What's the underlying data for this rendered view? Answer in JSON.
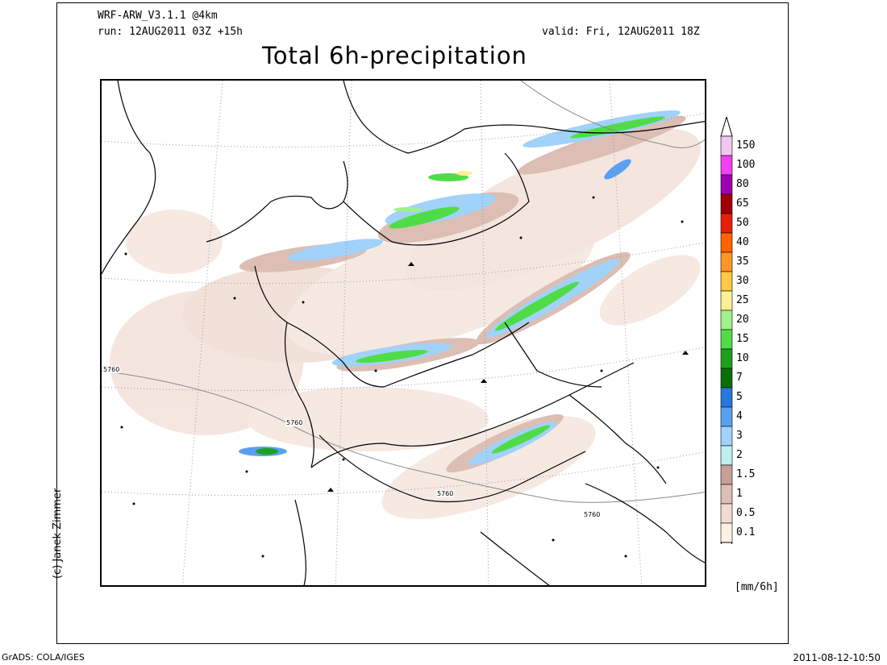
{
  "header": {
    "model": "WRF-ARW_V3.1.1 @4km",
    "run": "run: 12AUG2011 03Z +15h",
    "valid": "valid: Fri, 12AUG2011 18Z",
    "title": "Total 6h-precipitation"
  },
  "copyright": "(c) Janek Zimmer",
  "legend": {
    "levels": [
      "150",
      "100",
      "80",
      "65",
      "50",
      "40",
      "35",
      "30",
      "25",
      "20",
      "15",
      "10",
      "7",
      "5",
      "4",
      "3",
      "2",
      "1.5",
      "1",
      "0.5",
      "0.1"
    ],
    "colors": [
      "#f0c8f0",
      "#f040f0",
      "#a000b4",
      "#a00000",
      "#e61e0a",
      "#ff6400",
      "#ff9628",
      "#ffc846",
      "#fff096",
      "#a0f08c",
      "#50dc46",
      "#1ea01e",
      "#0a6e0a",
      "#2878dc",
      "#5aa0f0",
      "#a0d2fa",
      "#bef0f0",
      "#c8a096",
      "#dcbeb4",
      "#f0dcd2",
      "#fff0e6"
    ],
    "units": "[mm/6h]"
  },
  "contour_labels": [
    "5760",
    "5760",
    "5760",
    "5760"
  ],
  "footer": {
    "left": "GrADS: COLA/IGES",
    "right": "2011-08-12-10:50"
  }
}
